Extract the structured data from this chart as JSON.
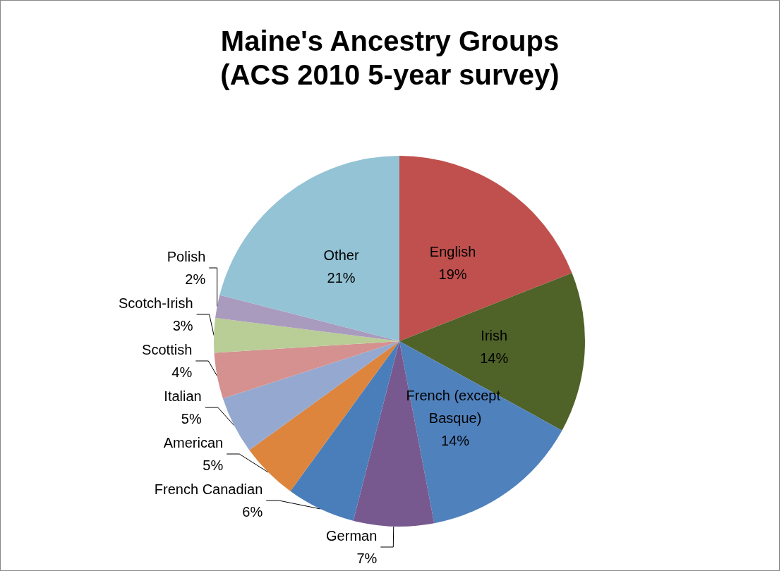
{
  "chart_data": {
    "type": "pie",
    "title": "Maine's Ancestry Groups",
    "subtitle": "(ACS 2010 5-year survey)",
    "categories": [
      "English",
      "Irish",
      "French (except Basque)",
      "German",
      "French Canadian",
      "American",
      "Italian",
      "Scottish",
      "Scotch-Irish",
      "Polish",
      "Other"
    ],
    "values": [
      19,
      14,
      14,
      7,
      6,
      5,
      5,
      4,
      3,
      2,
      21
    ],
    "colors": [
      "#c0504d",
      "#4f6228",
      "#4f81bd",
      "#77598f",
      "#4a7ebb",
      "#dd843d",
      "#95a9d0",
      "#d4918f",
      "#b9cd96",
      "#a99bbd",
      "#93c3d5"
    ],
    "value_labels": [
      "19%",
      "14%",
      "14%",
      "7%",
      "6%",
      "5%",
      "5%",
      "4%",
      "3%",
      "2%",
      "21%"
    ],
    "legend": false
  }
}
